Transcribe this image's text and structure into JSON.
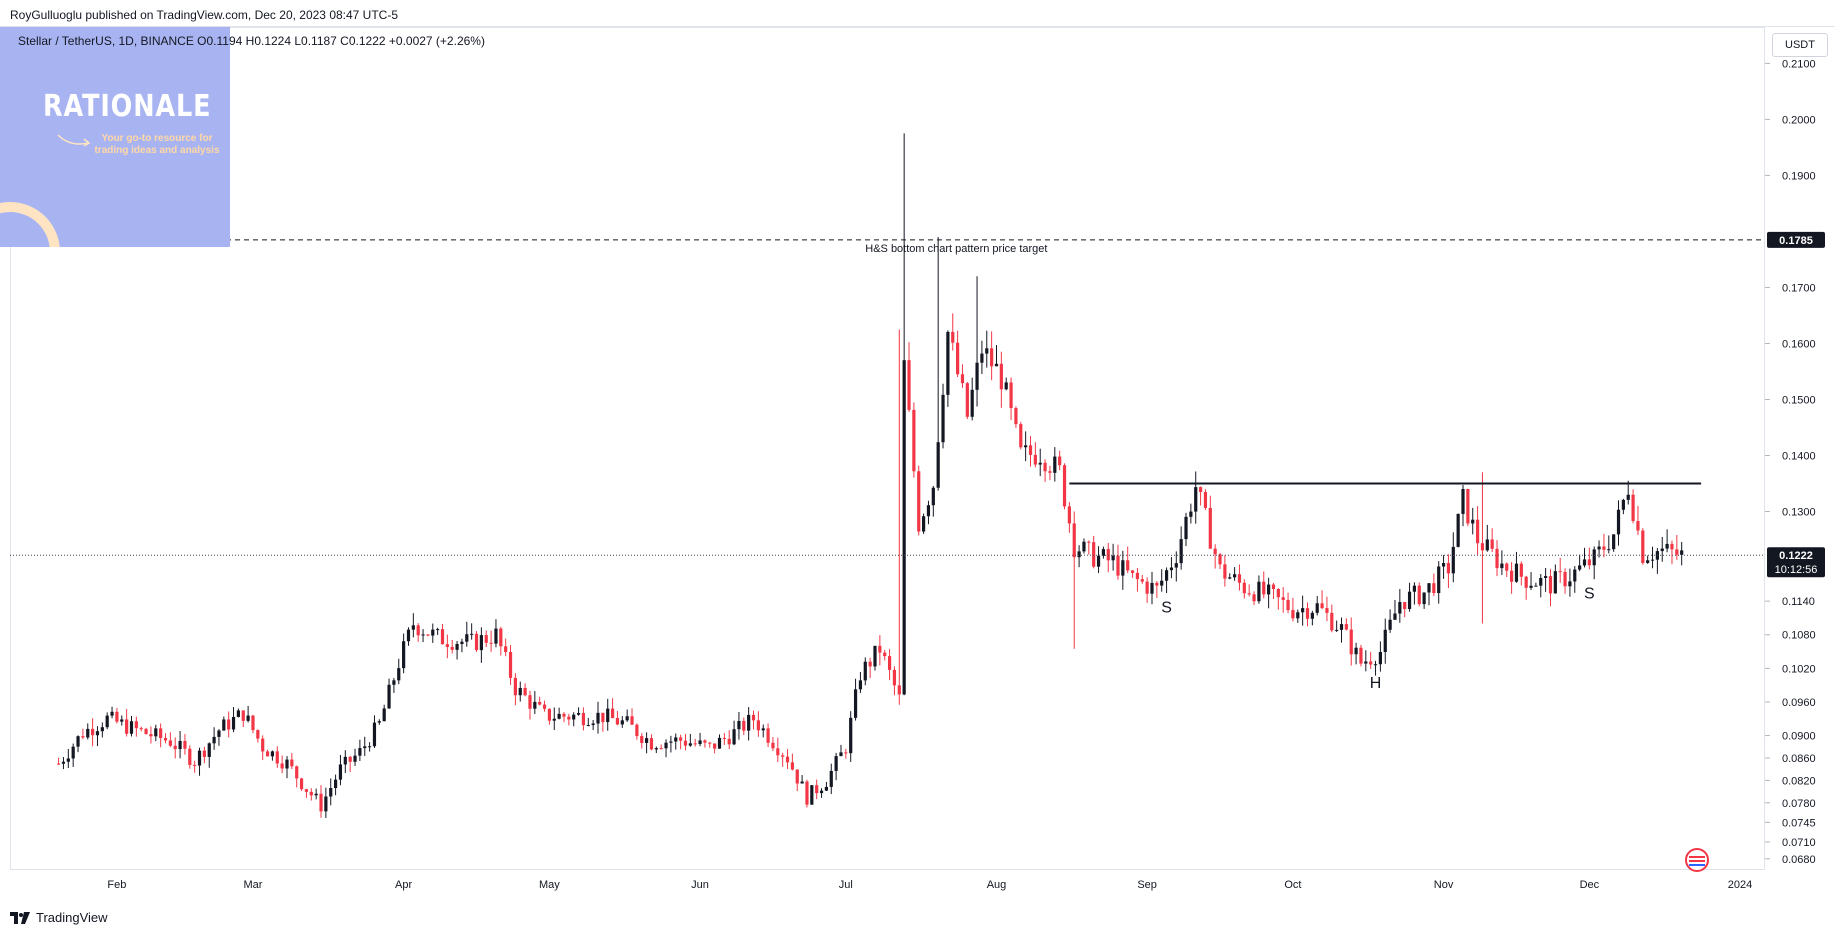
{
  "header": {
    "publisher": "RoyGulluoglu published on TradingView.com, Dec 20, 2023 08:47 UTC-5",
    "symbol_line": "Stellar / TetherUS, 1D, BINANCE  O0.1194  H0.1224  L0.1187  C0.1222  +0.0027 (+2.26%)"
  },
  "watermark": {
    "title": "RATIONALE",
    "tagline": "Your go-to resource for trading ideas and analysis"
  },
  "footer": {
    "brand": "TradingView"
  },
  "colors": {
    "up": "#131722",
    "down": "#f23645",
    "background": "#ffffff",
    "watermark": "#a8b4f2"
  },
  "chart_data": {
    "type": "candlestick",
    "symbol": "Stellar / TetherUS",
    "timeframe": "1D",
    "exchange": "BINANCE",
    "currency": "USDT",
    "ohlc_last": {
      "open": 0.1194,
      "high": 0.1224,
      "low": 0.1187,
      "close": 0.1222,
      "change": "+0.0027 (+2.26%)"
    },
    "ylim": [
      0.066,
      0.2165
    ],
    "y_ticks": [
      "0.0680",
      "0.0710",
      "0.0745",
      "0.0780",
      "0.0820",
      "0.0860",
      "0.0900",
      "0.0960",
      "0.1020",
      "0.1080",
      "0.1140",
      "0.1300",
      "0.1400",
      "0.1500",
      "0.1600",
      "0.1700",
      "0.1900",
      "0.2000",
      "0.2100"
    ],
    "x_ticks": [
      "Feb",
      "Mar",
      "Apr",
      "May",
      "Jun",
      "Jul",
      "Aug",
      "Sep",
      "Oct",
      "Nov",
      "Dec",
      "2024"
    ],
    "price_labels": [
      {
        "text": "0.1785",
        "value": 0.1785,
        "style": "dark"
      },
      {
        "text": "0.1222",
        "value": 0.1222,
        "style": "dark",
        "sub": "10:12:56"
      }
    ],
    "horizontal_lines": [
      {
        "name": "price-target-line",
        "value": 0.1785,
        "style": "dashed",
        "label": "H&S bottom chart pattern price target"
      },
      {
        "name": "last-price-line",
        "value": 0.1222,
        "style": "dotted"
      },
      {
        "name": "neckline",
        "value": 0.135,
        "style": "solid",
        "from": "2023-08-16",
        "to": "2023-12-24"
      }
    ],
    "annotations": [
      {
        "text": "S",
        "date": "2023-09-05",
        "value": 0.112
      },
      {
        "text": "H",
        "date": "2023-10-18",
        "value": 0.0985
      },
      {
        "text": "S",
        "date": "2023-12-01",
        "value": 0.1145
      }
    ],
    "trend_points": [
      [
        "2023-01-20",
        0.085
      ],
      [
        "2023-01-25",
        0.0905
      ],
      [
        "2023-01-30",
        0.093
      ],
      [
        "2023-02-05",
        0.091
      ],
      [
        "2023-02-12",
        0.089
      ],
      [
        "2023-02-17",
        0.0855
      ],
      [
        "2023-02-22",
        0.091
      ],
      [
        "2023-02-27",
        0.094
      ],
      [
        "2023-03-03",
        0.088
      ],
      [
        "2023-03-08",
        0.085
      ],
      [
        "2023-03-12",
        0.0805
      ],
      [
        "2023-03-15",
        0.0775
      ],
      [
        "2023-03-19",
        0.084
      ],
      [
        "2023-03-23",
        0.087
      ],
      [
        "2023-03-27",
        0.092
      ],
      [
        "2023-03-31",
        0.103
      ],
      [
        "2023-04-03",
        0.11
      ],
      [
        "2023-04-08",
        0.1075
      ],
      [
        "2023-04-15",
        0.1065
      ],
      [
        "2023-04-20",
        0.108
      ],
      [
        "2023-04-24",
        0.0985
      ],
      [
        "2023-04-30",
        0.0935
      ],
      [
        "2023-05-06",
        0.0935
      ],
      [
        "2023-05-12",
        0.0935
      ],
      [
        "2023-05-17",
        0.092
      ],
      [
        "2023-05-22",
        0.0888
      ],
      [
        "2023-05-28",
        0.0892
      ],
      [
        "2023-06-03",
        0.0878
      ],
      [
        "2023-06-08",
        0.0905
      ],
      [
        "2023-06-12",
        0.093
      ],
      [
        "2023-06-15",
        0.09
      ],
      [
        "2023-06-19",
        0.086
      ],
      [
        "2023-06-23",
        0.079
      ],
      [
        "2023-06-27",
        0.082
      ],
      [
        "2023-07-01",
        0.088
      ],
      [
        "2023-07-04",
        0.101
      ],
      [
        "2023-07-08",
        0.1055
      ],
      [
        "2023-07-12",
        0.0965
      ],
      [
        "2023-07-13",
        0.156
      ],
      [
        "2023-07-16",
        0.128
      ],
      [
        "2023-07-19",
        0.135
      ],
      [
        "2023-07-22",
        0.162
      ],
      [
        "2023-07-26",
        0.147
      ],
      [
        "2023-07-29",
        0.159
      ],
      [
        "2023-08-02",
        0.154
      ],
      [
        "2023-08-06",
        0.14
      ],
      [
        "2023-08-10",
        0.1405
      ],
      [
        "2023-08-14",
        0.137
      ],
      [
        "2023-08-17",
        0.124
      ],
      [
        "2023-08-21",
        0.122
      ],
      [
        "2023-08-25",
        0.121
      ],
      [
        "2023-08-29",
        0.118
      ],
      [
        "2023-09-03",
        0.116
      ],
      [
        "2023-09-07",
        0.1225
      ],
      [
        "2023-09-11",
        0.1345
      ],
      [
        "2023-09-16",
        0.1195
      ],
      [
        "2023-09-21",
        0.1165
      ],
      [
        "2023-09-26",
        0.115
      ],
      [
        "2023-10-01",
        0.1125
      ],
      [
        "2023-10-06",
        0.113
      ],
      [
        "2023-10-11",
        0.109
      ],
      [
        "2023-10-15",
        0.103
      ],
      [
        "2023-10-19",
        0.105
      ],
      [
        "2023-10-23",
        0.114
      ],
      [
        "2023-10-28",
        0.1155
      ],
      [
        "2023-11-02",
        0.12
      ],
      [
        "2023-11-05",
        0.132
      ],
      [
        "2023-11-08",
        0.125
      ],
      [
        "2023-11-13",
        0.1205
      ],
      [
        "2023-11-18",
        0.118
      ],
      [
        "2023-11-23",
        0.117
      ],
      [
        "2023-11-27",
        0.1185
      ],
      [
        "2023-12-02",
        0.1215
      ],
      [
        "2023-12-06",
        0.126
      ],
      [
        "2023-12-09",
        0.1345
      ],
      [
        "2023-12-12",
        0.1225
      ],
      [
        "2023-12-16",
        0.123
      ],
      [
        "2023-12-20",
        0.1222
      ]
    ],
    "spikes": [
      {
        "date": "2023-07-12",
        "low": 0.0955,
        "high": 0.1625
      },
      {
        "date": "2023-07-13",
        "low": 0.1225,
        "high": 0.1975
      },
      {
        "date": "2023-07-20",
        "low": 0.141,
        "high": 0.179
      },
      {
        "date": "2023-07-28",
        "low": 0.149,
        "high": 0.172
      },
      {
        "date": "2023-08-17",
        "low": 0.1055,
        "high": 0.13
      },
      {
        "date": "2023-11-09",
        "low": 0.11,
        "high": 0.137
      }
    ]
  }
}
